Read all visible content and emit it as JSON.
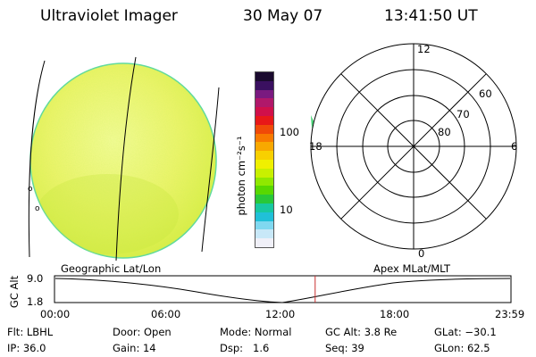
{
  "header": {
    "instrument": "Ultraviolet Imager",
    "date": "30 May 07",
    "time": "13:41:50 UT"
  },
  "colorbar": {
    "unit_label": "photon cm⁻²s⁻¹",
    "ticks": [
      "100",
      "10"
    ],
    "colors_top_to_bottom": [
      "#1a0a2e",
      "#3a1060",
      "#7a1a80",
      "#b0186a",
      "#d0104a",
      "#e81818",
      "#f04a08",
      "#f87a00",
      "#f8a800",
      "#f8d000",
      "#f0f000",
      "#c8f000",
      "#90e800",
      "#58d800",
      "#28c838",
      "#18c8a0",
      "#20c0d8",
      "#80d8f0",
      "#c8e8f8",
      "#f0f0f8"
    ]
  },
  "polar_plot": {
    "mlt_labels": [
      "12",
      "18",
      "6",
      "0"
    ],
    "lat_labels": [
      "60",
      "70",
      "80"
    ]
  },
  "timeline": {
    "left_label": "Geographic Lat/Lon",
    "right_label": "Apex MLat/MLT",
    "y_axis_label": "GC Alt",
    "y_ticks": [
      "9.0",
      "1.8"
    ],
    "x_ticks": [
      "00:00",
      "06:00",
      "12:00",
      "18:00",
      "23:59"
    ],
    "current_time_fraction": 0.571,
    "marker_color": "#c83030"
  },
  "status": {
    "row1": [
      {
        "label": "Flt:",
        "value": "LBHL"
      },
      {
        "label": "Door:",
        "value": "Open"
      },
      {
        "label": "Mode:",
        "value": "Normal"
      },
      {
        "label": "GC Alt:",
        "value": "3.8 Re"
      },
      {
        "label": "GLat:",
        "value": "−30.1"
      }
    ],
    "row2": [
      {
        "label": "IP:",
        "value": "36.0"
      },
      {
        "label": "Gain:",
        "value": "14"
      },
      {
        "label": "Dsp:",
        "value": "1.6"
      },
      {
        "label": "Seq:",
        "value": "39"
      },
      {
        "label": "GLon:",
        "value": "62.5"
      }
    ]
  }
}
